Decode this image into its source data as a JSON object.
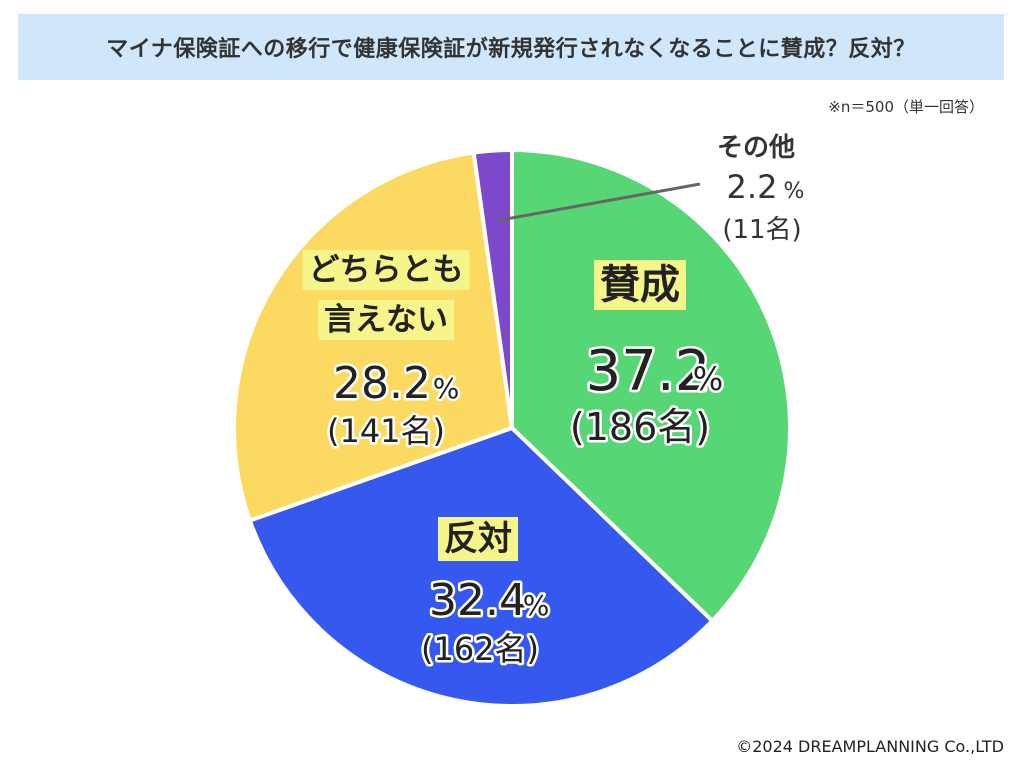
{
  "header": {
    "title": "マイナ保険証への移行で健康保険証が新規発行されなくなることに賛成？反対？",
    "note": "※n＝500（単一回答）"
  },
  "footer": {
    "copyright": "©2024 DREAMPLANNING Co.,LTD"
  },
  "chart_data": {
    "type": "pie",
    "title": "マイナ保険証への移行で健康保険証が新規発行されなくなることに賛成？反対？",
    "n": 500,
    "unit": "%",
    "start": "12 o'clock",
    "direction": "clockwise",
    "slices": [
      {
        "label": "賛成",
        "label_lines": [
          "賛成"
        ],
        "value": 37.2,
        "value_text": "37.2",
        "count": 186,
        "count_text": "(186名)",
        "color": "#57d676"
      },
      {
        "label": "反対",
        "label_lines": [
          "反対"
        ],
        "value": 32.4,
        "value_text": "32.4",
        "count": 162,
        "count_text": "(162名)",
        "color": "#3558ee"
      },
      {
        "label": "どちらとも言えない",
        "label_lines": [
          "どちらとも",
          "言えない"
        ],
        "value": 28.2,
        "value_text": "28.2",
        "count": 141,
        "count_text": "(141名)",
        "color": "#fcd960"
      },
      {
        "label": "その他",
        "label_lines": [
          "その他"
        ],
        "value": 2.2,
        "value_text": "2.2",
        "count": 11,
        "count_text": "(11名)",
        "color": "#7c48cc"
      }
    ]
  }
}
